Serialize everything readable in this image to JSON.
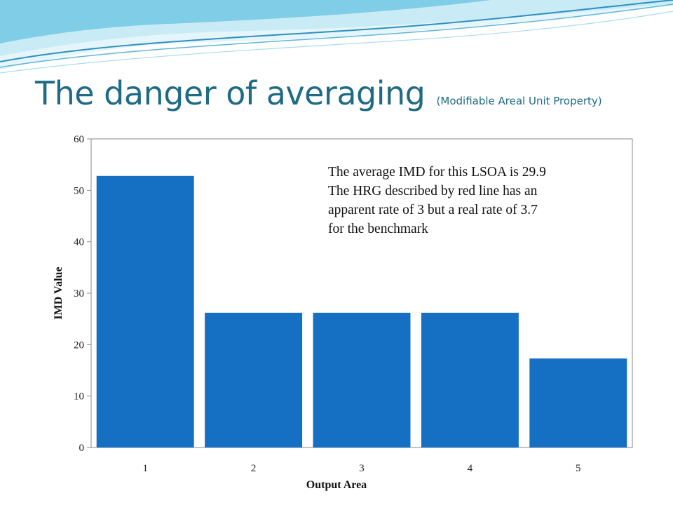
{
  "slide": {
    "title": "The danger of averaging",
    "subtitle": "(Modifiable Areal Unit Property)",
    "annotation": "The average IMD for this LSOA is 29.9  The HRG described by red line has an apparent rate of 3 but a real rate of 3.7 for the benchmark"
  },
  "colors": {
    "bar": "#1570c4",
    "title": "#1f6b84",
    "wave_light": "#c9ebf6",
    "wave_mid": "#7fcde6",
    "wave_dark": "#2f8fc0"
  },
  "chart_data": {
    "type": "bar",
    "categories": [
      "1",
      "2",
      "3",
      "4",
      "5"
    ],
    "values": [
      52.8,
      26.2,
      26.2,
      26.2,
      17.3
    ],
    "xlabel": "Output Area",
    "ylabel": "IMD Value",
    "ylim": [
      0,
      60
    ],
    "yticks": [
      "0",
      "10",
      "20",
      "30",
      "40",
      "50",
      "60"
    ],
    "grid": false,
    "legend": "none"
  }
}
